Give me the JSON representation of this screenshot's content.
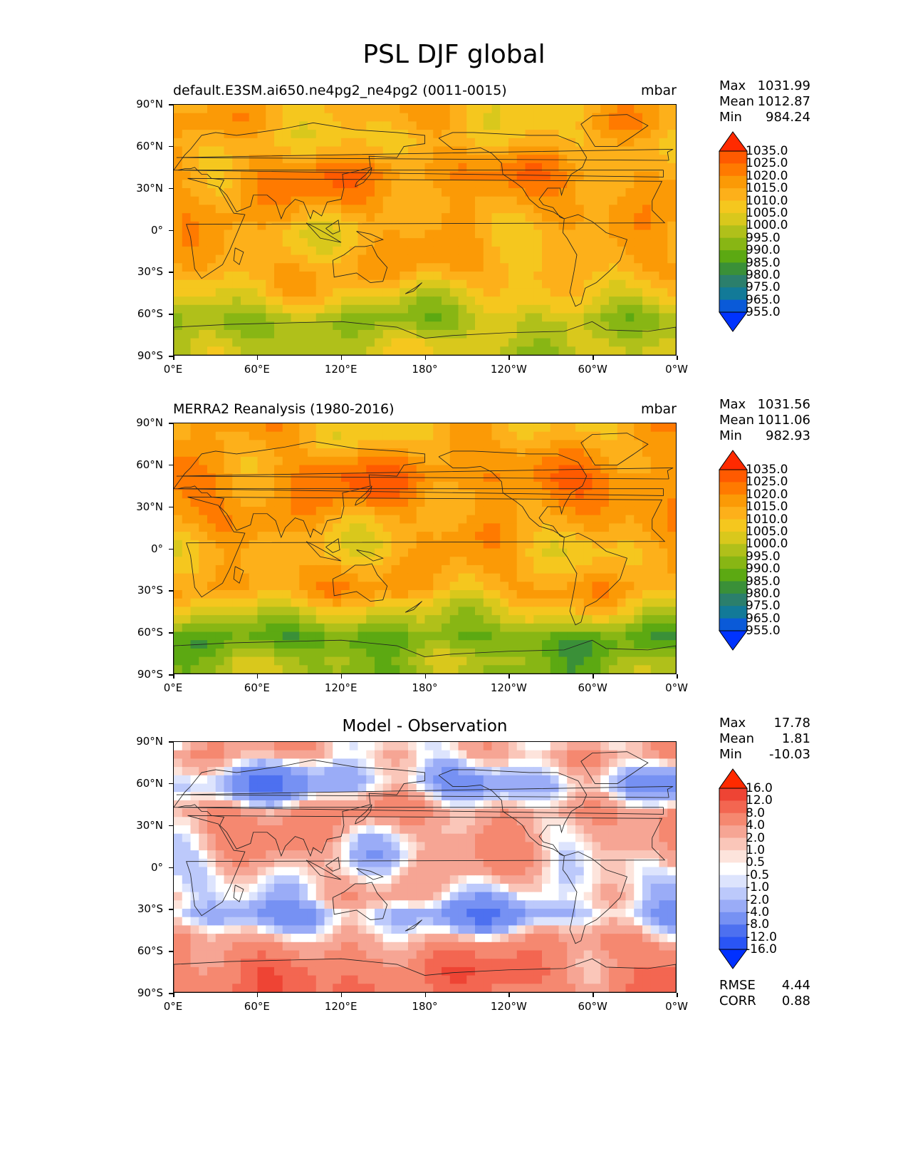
{
  "suptitle": "PSL DJF global",
  "panels": [
    {
      "title_left": "default.E3SM.ai650.ne4pg2_ne4pg2 (0011-0015)",
      "title_right": "mbar",
      "title_center": "",
      "stats": [
        {
          "label": "Max",
          "value": "1031.99"
        },
        {
          "label": "Mean",
          "value": "1012.87"
        },
        {
          "label": "Min",
          "value": "984.24"
        }
      ],
      "colorbar_labels": [
        "1035.0",
        "1025.0",
        "1020.0",
        "1015.0",
        "1010.0",
        "1005.0",
        "1000.0",
        "995.0",
        "990.0",
        "985.0",
        "980.0",
        "975.0",
        "965.0",
        "955.0"
      ]
    },
    {
      "title_left": "MERRA2 Reanalysis (1980-2016)",
      "title_right": "mbar",
      "title_center": "",
      "stats": [
        {
          "label": "Max",
          "value": "1031.56"
        },
        {
          "label": "Mean",
          "value": "1011.06"
        },
        {
          "label": "Min",
          "value": "982.93"
        }
      ],
      "colorbar_labels": [
        "1035.0",
        "1025.0",
        "1020.0",
        "1015.0",
        "1010.0",
        "1005.0",
        "1000.0",
        "995.0",
        "990.0",
        "985.0",
        "980.0",
        "975.0",
        "965.0",
        "955.0"
      ]
    },
    {
      "title_left": "",
      "title_right": "",
      "title_center": "Model - Observation",
      "stats": [
        {
          "label": "Max",
          "value": "17.78"
        },
        {
          "label": "Mean",
          "value": "1.81"
        },
        {
          "label": "Min",
          "value": "-10.03"
        }
      ],
      "colorbar_labels": [
        "16.0",
        "12.0",
        "8.0",
        "4.0",
        "2.0",
        "1.0",
        "0.5",
        "-0.5",
        "-1.0",
        "-2.0",
        "-4.0",
        "-8.0",
        "-12.0",
        "-16.0"
      ],
      "extra_stats": [
        {
          "label": "RMSE",
          "value": "4.44"
        },
        {
          "label": "CORR",
          "value": "0.88"
        }
      ]
    }
  ],
  "axes": {
    "yticks": [
      "90°N",
      "60°N",
      "30°N",
      "0°",
      "30°S",
      "60°S",
      "90°S"
    ],
    "xticks": [
      "0°E",
      "60°E",
      "120°E",
      "180°",
      "120°W",
      "60°W",
      "0°W"
    ]
  },
  "colors": {
    "psl_scale": [
      "#ff2a00",
      "#ff5a00",
      "#ff7a00",
      "#fb9a06",
      "#fdb01a",
      "#f5c71e",
      "#d9c81c",
      "#b0c01a",
      "#88b614",
      "#5ca912",
      "#3a9038",
      "#2b7f6c",
      "#127a98",
      "#0a5ad8",
      "#0033ff"
    ],
    "diff_scale": [
      "#ff2a00",
      "#ee4434",
      "#f36651",
      "#f58870",
      "#f6a594",
      "#fac6b9",
      "#fde4dc",
      "#ffffff",
      "#dde4fd",
      "#bcc9fb",
      "#9aacf7",
      "#7691f3",
      "#4d70f0",
      "#2a55f5",
      "#0030ff"
    ]
  },
  "chart_data": [
    {
      "type": "heatmap",
      "title": "default.E3SM.ai650.ne4pg2_ne4pg2 (0011-0015)",
      "units": "mbar",
      "x_range": [
        0,
        360
      ],
      "y_range": [
        -90,
        90
      ],
      "latitude_bands_psl": [
        {
          "lat": 80,
          "psl": 1012
        },
        {
          "lat": 65,
          "psl": 1010
        },
        {
          "lat": 40,
          "psl": 1020
        },
        {
          "lat": 30,
          "psl": 1018
        },
        {
          "lat": 0,
          "psl": 1012
        },
        {
          "lat": -30,
          "psl": 1014
        },
        {
          "lat": -50,
          "psl": 1005
        },
        {
          "lat": -65,
          "psl": 995
        },
        {
          "lat": -80,
          "psl": 1000
        }
      ],
      "max": 1031.99,
      "mean": 1012.87,
      "min": 984.24
    },
    {
      "type": "heatmap",
      "title": "MERRA2 Reanalysis (1980-2016)",
      "units": "mbar",
      "x_range": [
        0,
        360
      ],
      "y_range": [
        -90,
        90
      ],
      "latitude_bands_psl": [
        {
          "lat": 80,
          "psl": 1012
        },
        {
          "lat": 50,
          "psl": 1022
        },
        {
          "lat": 30,
          "psl": 1017
        },
        {
          "lat": 0,
          "psl": 1011
        },
        {
          "lat": -30,
          "psl": 1016
        },
        {
          "lat": -50,
          "psl": 1000
        },
        {
          "lat": -65,
          "psl": 988
        },
        {
          "lat": -80,
          "psl": 995
        }
      ],
      "max": 1031.56,
      "mean": 1011.06,
      "min": 982.93
    },
    {
      "type": "heatmap",
      "title": "Model - Observation",
      "x_range": [
        0,
        360
      ],
      "y_range": [
        -90,
        90
      ],
      "latitude_bands_diff": [
        {
          "lat": 80,
          "diff": 2.0
        },
        {
          "lat": 60,
          "diff": -4.0
        },
        {
          "lat": 40,
          "diff": 4.0
        },
        {
          "lat": 10,
          "diff": 2.0
        },
        {
          "lat": -20,
          "diff": 0.5
        },
        {
          "lat": -35,
          "diff": -4.0
        },
        {
          "lat": -55,
          "diff": 4.0
        },
        {
          "lat": -75,
          "diff": 8.0
        }
      ],
      "max": 17.78,
      "mean": 1.81,
      "min": -10.03,
      "rmse": 4.44,
      "corr": 0.88
    }
  ]
}
